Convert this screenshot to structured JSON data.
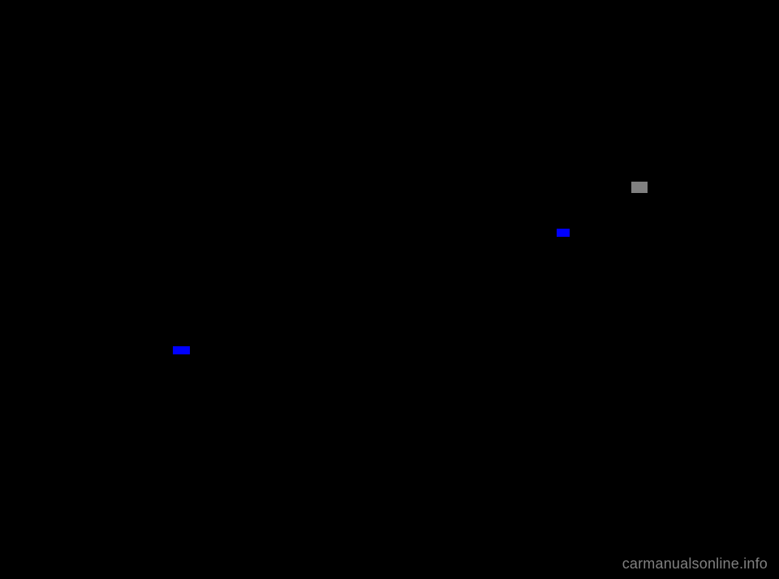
{
  "background_color": "#000000",
  "page_num_box": {
    "color": "#808080"
  },
  "links": {
    "link1_color": "#0000ff",
    "link2_color": "#0000ff"
  },
  "watermark": {
    "text": "carmanualsonline.info",
    "color": "#808080",
    "fontsize": 18
  }
}
